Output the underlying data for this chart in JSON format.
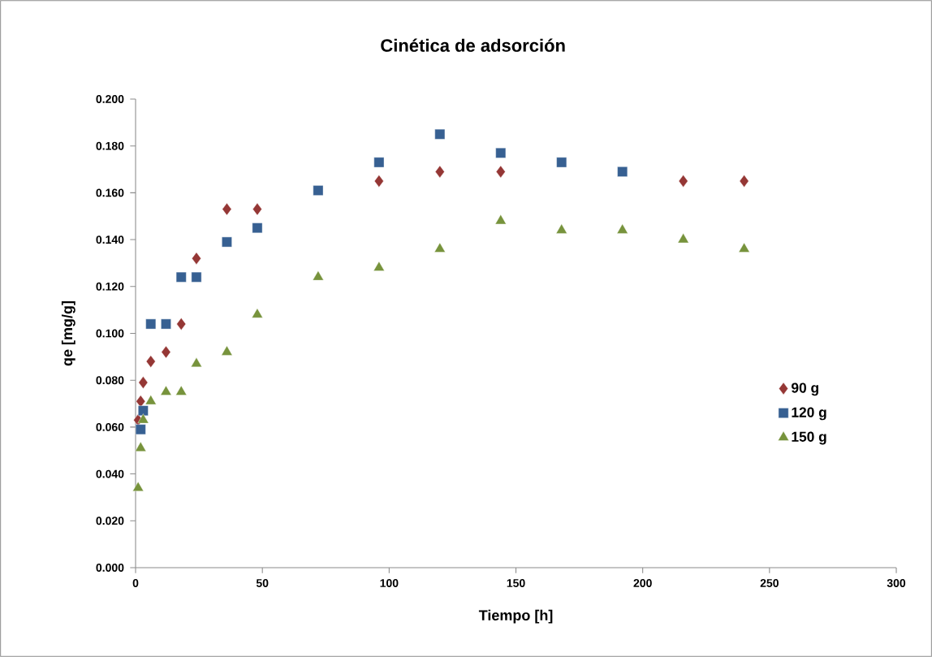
{
  "chart_data": {
    "type": "scatter",
    "title": "Cinética de adsorción",
    "xlabel": "Tiempo [h]",
    "ylabel": "qe [mg/g]",
    "xlim": [
      0,
      300
    ],
    "xticks": [
      0,
      50,
      100,
      150,
      200,
      250,
      300
    ],
    "ylim": [
      0,
      0.2
    ],
    "yticks": [
      {
        "value": 0,
        "label": "0.000"
      },
      {
        "value": 0.02,
        "label": "0.020"
      },
      {
        "value": 0.04,
        "label": "0.040"
      },
      {
        "value": 0.06,
        "label": "0.060"
      },
      {
        "value": 0.08,
        "label": "0.080"
      },
      {
        "value": 0.1,
        "label": "0.100"
      },
      {
        "value": 0.12,
        "label": "0.120"
      },
      {
        "value": 0.14,
        "label": "0.140"
      },
      {
        "value": 0.16,
        "label": "0.160"
      },
      {
        "value": 0.18,
        "label": "0.180"
      },
      {
        "value": 0.2,
        "label": "0.200"
      }
    ],
    "grid": false,
    "legend": "right",
    "series": [
      {
        "name": "90 g",
        "color": "#953735",
        "marker": "diamond",
        "x": [
          1,
          2,
          3,
          6,
          12,
          18,
          24,
          36,
          48,
          72,
          96,
          120,
          144,
          168,
          192,
          216,
          240
        ],
        "values": [
          0.063,
          0.071,
          0.079,
          0.088,
          0.092,
          0.104,
          0.132,
          0.153,
          0.153,
          null,
          0.165,
          0.169,
          0.169,
          null,
          null,
          0.165,
          0.165
        ]
      },
      {
        "name": "120 g",
        "color": "#376092",
        "marker": "square",
        "x": [
          2,
          3,
          6,
          12,
          18,
          24,
          36,
          48,
          72,
          96,
          120,
          144,
          168,
          192
        ],
        "values": [
          0.059,
          0.067,
          0.104,
          0.104,
          0.124,
          0.124,
          0.139,
          0.145,
          0.161,
          0.173,
          0.185,
          0.177,
          0.173,
          0.169
        ]
      },
      {
        "name": "150 g",
        "color": "#77933c",
        "marker": "triangle",
        "x": [
          1,
          2,
          3,
          6,
          12,
          18,
          24,
          36,
          48,
          72,
          96,
          120,
          144,
          168,
          192,
          216,
          240
        ],
        "values": [
          0.034,
          0.051,
          0.063,
          0.071,
          0.075,
          0.075,
          0.087,
          0.092,
          0.108,
          0.124,
          0.128,
          0.136,
          0.148,
          0.144,
          0.144,
          0.14,
          0.136
        ]
      }
    ]
  }
}
